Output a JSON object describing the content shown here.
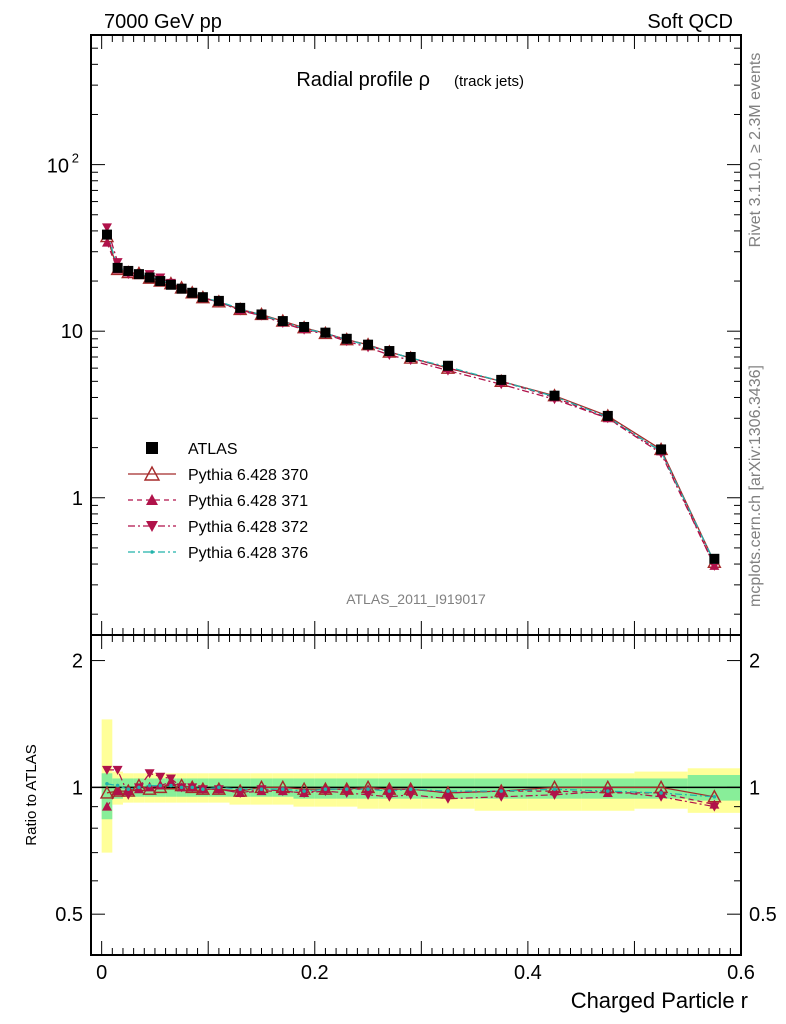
{
  "header": {
    "left": "7000 GeV pp",
    "right": "Soft QCD"
  },
  "side_labels": {
    "rivet": "Rivet 3.1.10, ≥ 2.3M events",
    "mcplots": "mcplots.cern.ch [arXiv:1306.3436]"
  },
  "chart_data": [
    {
      "type": "scatter",
      "title_main": "Radial profile ρ",
      "title_sub": "(track jets)",
      "watermark": "ATLAS_2011_I919017",
      "xlabel": "Charged Particle r",
      "ylabel": "",
      "xlim": [
        -0.01,
        0.6
      ],
      "ylim": [
        0.15,
        600
      ],
      "yscale": "log",
      "yticks": [
        {
          "v": 1,
          "label": "1"
        },
        {
          "v": 10,
          "label": "10"
        }
      ],
      "ytick_pow": {
        "v": 100,
        "base": "10",
        "exp": "2"
      },
      "legend_position": "left, mid-low",
      "x": [
        0.005,
        0.015,
        0.025,
        0.035,
        0.045,
        0.055,
        0.065,
        0.075,
        0.085,
        0.095,
        0.11,
        0.13,
        0.15,
        0.17,
        0.19,
        0.21,
        0.23,
        0.25,
        0.27,
        0.29,
        0.325,
        0.375,
        0.425,
        0.475,
        0.525,
        0.575
      ],
      "series": [
        {
          "name": "ATLAS",
          "color": "#000000",
          "marker": "square",
          "line": "none",
          "values": [
            38,
            24,
            23,
            22,
            21,
            20,
            19,
            18,
            17,
            16,
            15.2,
            13.8,
            12.6,
            11.5,
            10.6,
            9.8,
            9.0,
            8.3,
            7.6,
            7.0,
            6.2,
            5.1,
            4.1,
            3.1,
            1.95,
            0.43
          ]
        },
        {
          "name": "Pythia 6.428 370",
          "color": "#a52a2a",
          "marker": "open-triangle",
          "line": "solid",
          "values": [
            37,
            23.5,
            22.5,
            22.2,
            20.8,
            20.0,
            19.3,
            18.2,
            17.0,
            15.9,
            15.0,
            13.5,
            12.6,
            11.5,
            10.5,
            9.7,
            8.9,
            8.3,
            7.5,
            6.9,
            6.0,
            5.0,
            4.1,
            3.1,
            1.95,
            0.41
          ]
        },
        {
          "name": "Pythia 6.428 371",
          "color": "#b0124a",
          "marker": "filled-triangle",
          "line": "dashed",
          "values": [
            34,
            23.5,
            22.5,
            21.8,
            21.0,
            20.2,
            19.5,
            18.0,
            17.0,
            15.8,
            15.0,
            13.4,
            12.4,
            11.3,
            10.3,
            9.7,
            8.9,
            8.2,
            7.5,
            6.9,
            6.0,
            5.0,
            4.0,
            3.0,
            1.9,
            0.39
          ]
        },
        {
          "name": "Pythia 6.428 372",
          "color": "#b0124a",
          "marker": "filled-triangle-down",
          "line": "dashdot",
          "values": [
            42,
            26,
            22.0,
            22.0,
            22.0,
            21.0,
            19.5,
            18.0,
            17.0,
            15.8,
            15.0,
            13.3,
            12.4,
            11.2,
            10.2,
            9.6,
            8.7,
            8.0,
            7.2,
            6.7,
            5.8,
            4.8,
            3.9,
            3.0,
            1.85,
            0.39
          ]
        },
        {
          "name": "Pythia 6.428 376",
          "color": "#20b2aa",
          "marker": "small-dot",
          "line": "dashdot",
          "values": [
            39,
            24.2,
            22.8,
            22.0,
            21.3,
            20.3,
            19.2,
            18.0,
            17.0,
            15.9,
            15.1,
            13.6,
            12.5,
            11.4,
            10.4,
            9.7,
            8.9,
            8.2,
            7.5,
            6.9,
            6.1,
            5.0,
            4.05,
            3.05,
            1.9,
            0.41
          ]
        }
      ]
    },
    {
      "type": "scatter",
      "xlabel": "Charged Particle r",
      "ylabel": "Ratio to ATLAS",
      "xlim": [
        -0.01,
        0.6
      ],
      "ylim": [
        0.4,
        2.3
      ],
      "yscale": "log",
      "xticks": [
        {
          "v": 0,
          "label": "0"
        },
        {
          "v": 0.2,
          "label": "0.2"
        },
        {
          "v": 0.4,
          "label": "0.4"
        },
        {
          "v": 0.6,
          "label": "0.6"
        }
      ],
      "yticks": [
        {
          "v": 0.5,
          "label": "0.5"
        },
        {
          "v": 1,
          "label": "1"
        },
        {
          "v": 2,
          "label": "2"
        }
      ],
      "reference_line": 1,
      "x_edges": [
        0,
        0.01,
        0.02,
        0.03,
        0.04,
        0.05,
        0.06,
        0.07,
        0.08,
        0.09,
        0.1,
        0.12,
        0.14,
        0.16,
        0.18,
        0.2,
        0.22,
        0.24,
        0.26,
        0.28,
        0.3,
        0.35,
        0.4,
        0.45,
        0.5,
        0.55,
        0.6
      ],
      "band_yellow": [
        [
          0.7,
          1.45
        ],
        [
          0.91,
          1.09
        ],
        [
          0.92,
          1.08
        ],
        [
          0.92,
          1.08
        ],
        [
          0.92,
          1.08
        ],
        [
          0.92,
          1.08
        ],
        [
          0.92,
          1.08
        ],
        [
          0.92,
          1.08
        ],
        [
          0.92,
          1.08
        ],
        [
          0.92,
          1.08
        ],
        [
          0.92,
          1.08
        ],
        [
          0.91,
          1.08
        ],
        [
          0.91,
          1.08
        ],
        [
          0.91,
          1.08
        ],
        [
          0.9,
          1.08
        ],
        [
          0.9,
          1.08
        ],
        [
          0.9,
          1.08
        ],
        [
          0.89,
          1.08
        ],
        [
          0.89,
          1.08
        ],
        [
          0.89,
          1.08
        ],
        [
          0.89,
          1.08
        ],
        [
          0.88,
          1.08
        ],
        [
          0.88,
          1.08
        ],
        [
          0.88,
          1.08
        ],
        [
          0.89,
          1.09
        ],
        [
          0.87,
          1.11
        ]
      ],
      "band_green": [
        [
          0.84,
          1.08
        ],
        [
          0.94,
          1.05
        ],
        [
          0.95,
          1.05
        ],
        [
          0.95,
          1.05
        ],
        [
          0.95,
          1.05
        ],
        [
          0.95,
          1.05
        ],
        [
          0.95,
          1.05
        ],
        [
          0.95,
          1.05
        ],
        [
          0.95,
          1.05
        ],
        [
          0.95,
          1.05
        ],
        [
          0.95,
          1.05
        ],
        [
          0.95,
          1.05
        ],
        [
          0.95,
          1.05
        ],
        [
          0.95,
          1.05
        ],
        [
          0.94,
          1.05
        ],
        [
          0.94,
          1.05
        ],
        [
          0.94,
          1.05
        ],
        [
          0.94,
          1.05
        ],
        [
          0.94,
          1.05
        ],
        [
          0.94,
          1.05
        ],
        [
          0.94,
          1.05
        ],
        [
          0.94,
          1.05
        ],
        [
          0.94,
          1.05
        ],
        [
          0.94,
          1.05
        ],
        [
          0.94,
          1.05
        ],
        [
          0.93,
          1.07
        ]
      ],
      "x": [
        0.005,
        0.015,
        0.025,
        0.035,
        0.045,
        0.055,
        0.065,
        0.075,
        0.085,
        0.095,
        0.11,
        0.13,
        0.15,
        0.17,
        0.19,
        0.21,
        0.23,
        0.25,
        0.27,
        0.29,
        0.325,
        0.375,
        0.425,
        0.475,
        0.525,
        0.575
      ],
      "series": [
        {
          "name": "Pythia 6.428 370",
          "color": "#a52a2a",
          "marker": "open-triangle",
          "line": "solid",
          "values": [
            0.97,
            0.98,
            0.98,
            1.01,
            0.99,
            1.0,
            1.02,
            1.01,
            1.0,
            0.99,
            0.99,
            0.98,
            1.0,
            1.0,
            0.99,
            0.99,
            0.99,
            1.0,
            0.99,
            0.99,
            0.97,
            0.98,
            1.0,
            1.0,
            1.0,
            0.95
          ]
        },
        {
          "name": "Pythia 6.428 371",
          "color": "#b0124a",
          "marker": "filled-triangle",
          "line": "dashed",
          "values": [
            0.9,
            0.98,
            0.98,
            0.99,
            1.0,
            1.01,
            1.03,
            1.0,
            1.0,
            0.99,
            0.99,
            0.97,
            0.98,
            0.98,
            0.97,
            0.99,
            0.99,
            0.99,
            0.99,
            0.99,
            0.97,
            0.98,
            0.98,
            0.97,
            0.97,
            0.91
          ]
        },
        {
          "name": "Pythia 6.428 372",
          "color": "#b0124a",
          "marker": "filled-triangle-down",
          "line": "dashdot",
          "values": [
            1.1,
            1.1,
            0.96,
            1.0,
            1.08,
            1.06,
            1.05,
            1.0,
            1.0,
            0.99,
            0.99,
            0.97,
            0.99,
            0.98,
            0.97,
            0.98,
            0.97,
            0.96,
            0.95,
            0.96,
            0.94,
            0.95,
            0.96,
            0.98,
            0.95,
            0.9
          ]
        },
        {
          "name": "Pythia 6.428 376",
          "color": "#20b2aa",
          "marker": "small-dot",
          "line": "dashdot",
          "values": [
            1.02,
            1.01,
            0.99,
            1.0,
            1.01,
            1.01,
            1.01,
            1.0,
            1.0,
            0.99,
            1.0,
            0.99,
            0.99,
            0.99,
            0.98,
            0.99,
            0.99,
            0.99,
            0.98,
            0.99,
            0.98,
            0.98,
            0.99,
            0.98,
            0.97,
            0.95
          ]
        }
      ]
    }
  ]
}
